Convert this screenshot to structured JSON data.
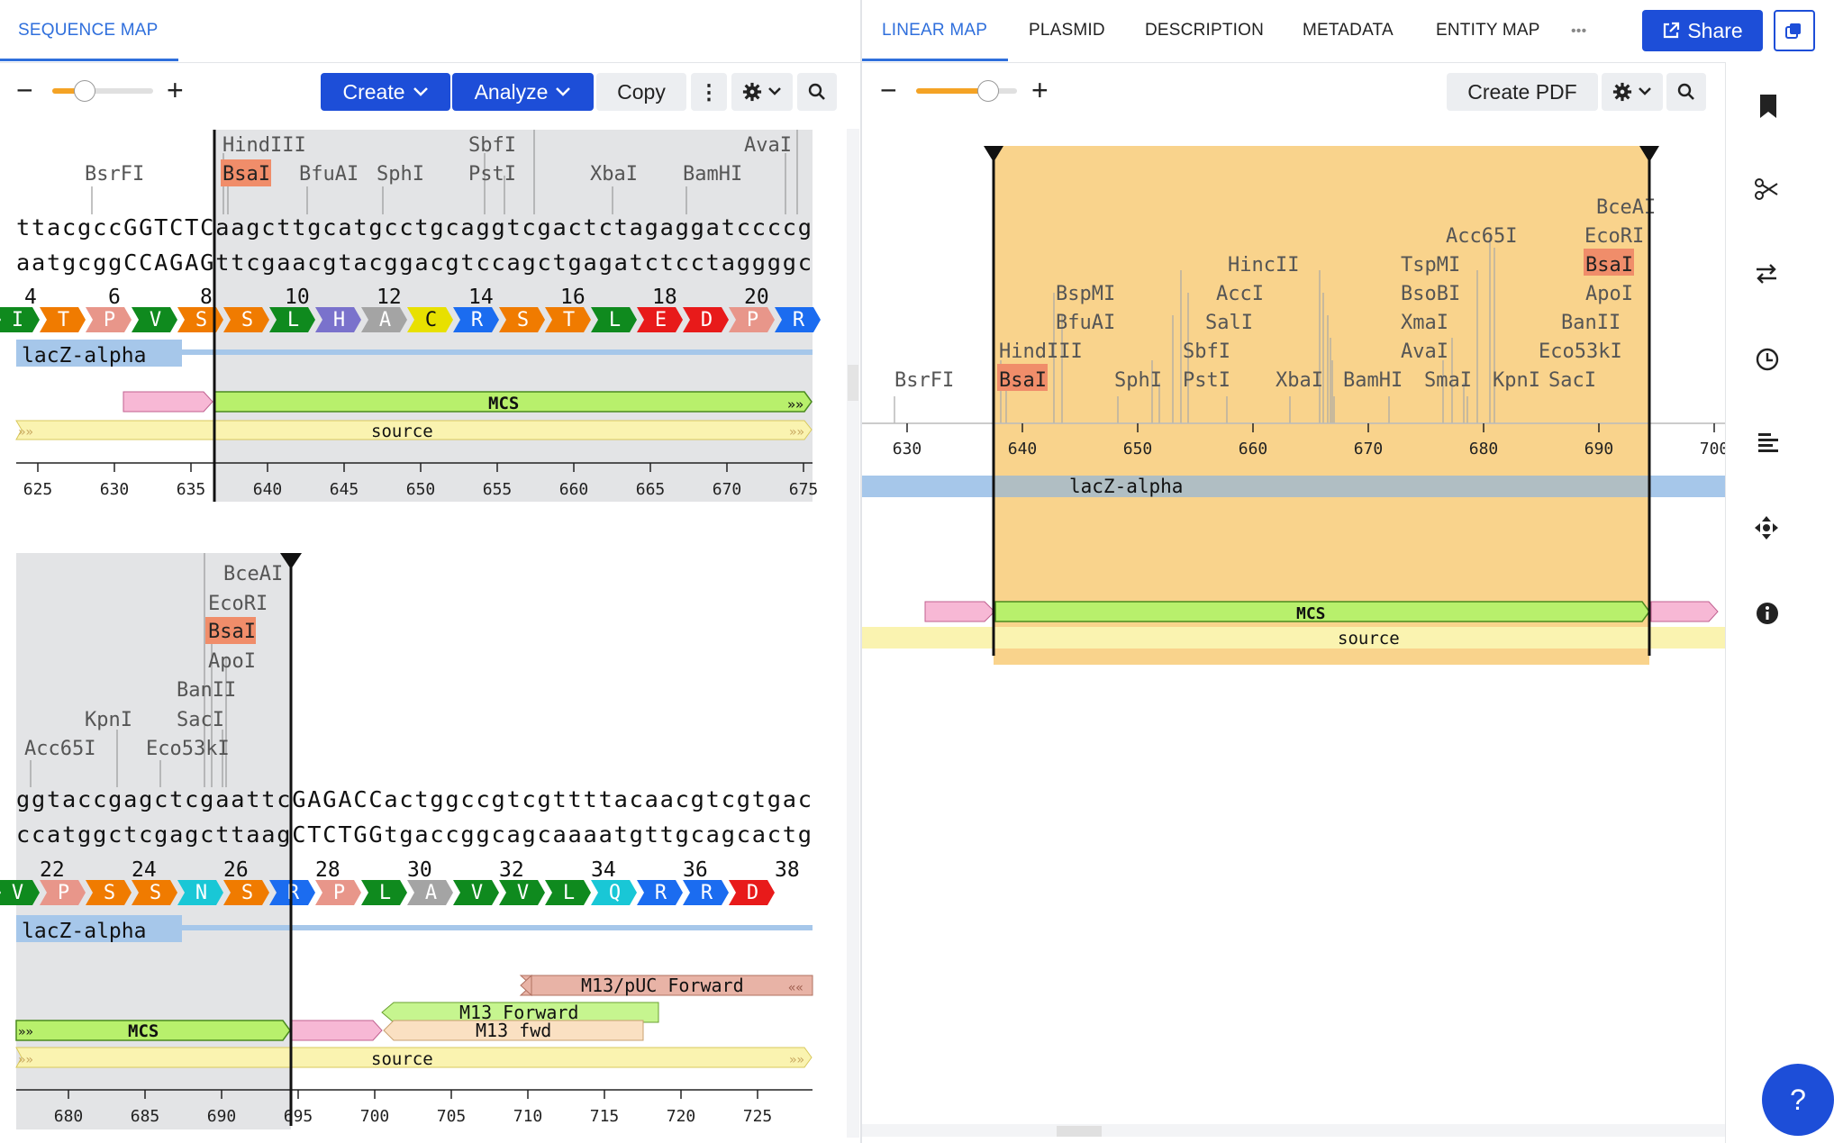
{
  "left_tabs": {
    "sequence_map": "SEQUENCE MAP"
  },
  "right_tabs": [
    {
      "label": "LINEAR MAP"
    },
    {
      "label": "PLASMID"
    },
    {
      "label": "DESCRIPTION"
    },
    {
      "label": "METADATA"
    },
    {
      "label": "ENTITY MAP"
    }
  ],
  "header": {
    "more": "•••",
    "share_label": "Share"
  },
  "left_toolbar": {
    "minus": "−",
    "plus": "+",
    "create": "Create",
    "analyze": "Analyze",
    "copy": "Copy",
    "kebab": "⋮"
  },
  "right_toolbar": {
    "minus": "−",
    "plus": "+",
    "create_pdf": "Create PDF"
  },
  "help": "?",
  "colors": {
    "accent": "#1d4ed8",
    "selection": "#f9d38c",
    "grey_region": "#e3e4e6"
  },
  "row1": {
    "enzymes": [
      {
        "name": "HindIII",
        "highlight": false
      },
      {
        "name": "SbfI",
        "highlight": false
      },
      {
        "name": "AvaI",
        "highlight": false
      },
      {
        "name": "BsrFI",
        "highlight": false
      },
      {
        "name": "BsaI",
        "highlight": true
      },
      {
        "name": "BfuAI",
        "highlight": false
      },
      {
        "name": "SphI",
        "highlight": false
      },
      {
        "name": "PstI",
        "highlight": false
      },
      {
        "name": "XbaI",
        "highlight": false
      },
      {
        "name": "BamHI",
        "highlight": false
      }
    ],
    "top_strand": "ttacgccGGTCTCaagcttgcatgcctgcaggtcgactctagaggatccccg",
    "bottom_strand": "aatgcggCCAGAGttcgaacgtacggacgtccagctgagatctcctaggggc",
    "aa_numbers": [
      "4",
      "6",
      "8",
      "10",
      "12",
      "14",
      "16",
      "18",
      "20"
    ],
    "amino_acids": [
      "I",
      "T",
      "P",
      "V",
      "S",
      "S",
      "L",
      "H",
      "A",
      "C",
      "R",
      "S",
      "T",
      "L",
      "E",
      "D",
      "P",
      "R"
    ],
    "features": {
      "lacz": "lacZ-alpha",
      "mcs": "MCS",
      "source": "source",
      "arrows": "»»"
    },
    "ruler": [
      "625",
      "630",
      "635",
      "640",
      "645",
      "650",
      "655",
      "660",
      "665",
      "670",
      "675"
    ]
  },
  "row2": {
    "enzymes": [
      {
        "name": "BceAI",
        "highlight": false
      },
      {
        "name": "EcoRI",
        "highlight": false
      },
      {
        "name": "BsaI",
        "highlight": true
      },
      {
        "name": "ApoI",
        "highlight": false
      },
      {
        "name": "BanII",
        "highlight": false
      },
      {
        "name": "KpnI",
        "highlight": false
      },
      {
        "name": "SacI",
        "highlight": false
      },
      {
        "name": "Acc65I",
        "highlight": false
      },
      {
        "name": "Eco53kI",
        "highlight": false
      }
    ],
    "top_strand": "ggtaccgagctcgaattcGAGACCactggccgtcgttttacaacgtcgtgac",
    "bottom_strand": "ccatggctcgagcttaagCTCTGGtgaccggcagcaaaatgttgcagcactg",
    "aa_numbers": [
      "22",
      "24",
      "26",
      "28",
      "30",
      "32",
      "34",
      "36",
      "38"
    ],
    "amino_acids": [
      "V",
      "P",
      "S",
      "S",
      "N",
      "S",
      "R",
      "P",
      "L",
      "A",
      "V",
      "V",
      "L",
      "Q",
      "R",
      "R",
      "D"
    ],
    "features": {
      "lacz": "lacZ-alpha",
      "m13puc": "M13/pUC Forward",
      "m13fwd": "M13 Forward",
      "m13fwd2": "M13 fwd",
      "mcs": "MCS",
      "source": "source",
      "arrows": "»»",
      "rarrows": "««"
    },
    "ruler": [
      "680",
      "685",
      "690",
      "695",
      "700",
      "705",
      "710",
      "715",
      "720",
      "725"
    ]
  },
  "linear_map": {
    "enzymes": [
      {
        "name": "BceAI",
        "highlight": false
      },
      {
        "name": "Acc65I",
        "highlight": false
      },
      {
        "name": "EcoRI",
        "highlight": false
      },
      {
        "name": "HincII",
        "highlight": false
      },
      {
        "name": "TspMI",
        "highlight": false
      },
      {
        "name": "BsaI",
        "highlight": true
      },
      {
        "name": "BspMI",
        "highlight": false
      },
      {
        "name": "AccI",
        "highlight": false
      },
      {
        "name": "BsoBI",
        "highlight": false
      },
      {
        "name": "ApoI",
        "highlight": false
      },
      {
        "name": "BfuAI",
        "highlight": false
      },
      {
        "name": "SalI",
        "highlight": false
      },
      {
        "name": "XmaI",
        "highlight": false
      },
      {
        "name": "BanII",
        "highlight": false
      },
      {
        "name": "HindIII",
        "highlight": false
      },
      {
        "name": "SbfI",
        "highlight": false
      },
      {
        "name": "AvaI",
        "highlight": false
      },
      {
        "name": "Eco53kI",
        "highlight": false
      },
      {
        "name": "BsrFI",
        "highlight": false
      },
      {
        "name": "BsaI",
        "highlight": true
      },
      {
        "name": "SphI",
        "highlight": false
      },
      {
        "name": "PstI",
        "highlight": false
      },
      {
        "name": "XbaI",
        "highlight": false
      },
      {
        "name": "BamHI",
        "highlight": false
      },
      {
        "name": "SmaI",
        "highlight": false
      },
      {
        "name": "KpnI",
        "highlight": false
      },
      {
        "name": "SacI",
        "highlight": false
      }
    ],
    "ruler": [
      "630",
      "640",
      "650",
      "660",
      "670",
      "680",
      "690",
      "700"
    ],
    "features": {
      "lacz": "lacZ-alpha",
      "mcs": "MCS",
      "source": "source"
    }
  }
}
